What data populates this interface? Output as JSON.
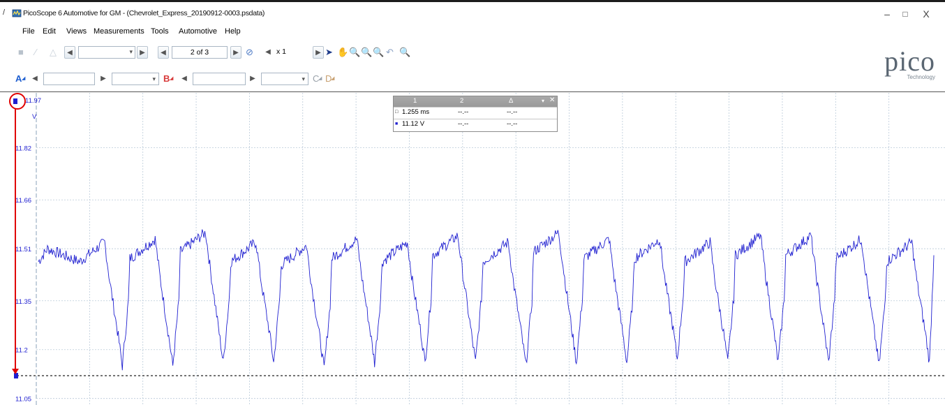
{
  "window": {
    "title": "PicoScope 6 Automotive for GM - (Chevrolet_Express_20190912-0003.psdata)",
    "minimize": "–",
    "maximize": "□",
    "close": "X",
    "left_glyph": "/"
  },
  "menu": [
    "File",
    "Edit",
    "Views",
    "Measurements",
    "Tools",
    "Automotive",
    "Help"
  ],
  "toolbar1": {
    "buffer_position": "2 of 3",
    "zoom": "x 1"
  },
  "logo": {
    "brand": "pico",
    "sub": "Technology"
  },
  "channels": {
    "a_label": "A",
    "b_label": "B",
    "c_label": "C",
    "d_label": "D"
  },
  "measurements_table": {
    "headers": [
      "1",
      "2",
      "Δ"
    ],
    "close": "✕",
    "pin": "▾",
    "rows": [
      {
        "values": [
          "1.255 ms",
          "--.--",
          "--.--"
        ]
      },
      {
        "values": [
          "11.12 V",
          "--.--",
          "--.--"
        ]
      }
    ]
  },
  "colors": {
    "channel_a": "#1f1fd0",
    "grid": "#b9c9d8",
    "ruler": "#222222",
    "annotation": "#e00000"
  },
  "chart_data": {
    "type": "line",
    "ylabel": "V",
    "y_ticks": [
      "11.97",
      "11.82",
      "11.66",
      "11.51",
      "11.35",
      "11.2",
      "11.05"
    ],
    "ylim": [
      11.03,
      11.98
    ],
    "series": [
      {
        "peaks_v": [
          11.53,
          11.54,
          11.56,
          11.53,
          11.52,
          11.54,
          11.53,
          11.55,
          11.53,
          11.56,
          11.54,
          11.54,
          11.53,
          11.55,
          11.55,
          11.54,
          11.53,
          11.55
        ],
        "troughs_v": [
          11.15,
          11.15,
          11.16,
          11.16,
          11.14,
          11.16,
          11.16,
          11.16,
          11.15,
          11.16,
          11.16,
          11.17,
          11.16,
          11.16,
          11.16,
          11.15,
          11.16
        ],
        "final_v": 11.49
      }
    ],
    "ruler_v": 11.12,
    "grid": true
  }
}
